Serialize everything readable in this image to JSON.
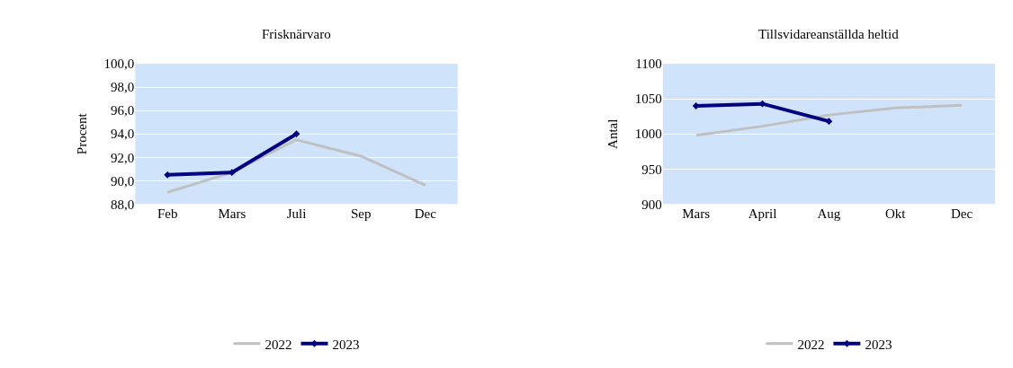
{
  "chart_data": [
    {
      "type": "line",
      "title": "Frisknärvaro",
      "ylabel": "Procent",
      "categories": [
        "Feb",
        "Mars",
        "Juli",
        "Sep",
        "Dec"
      ],
      "series": [
        {
          "name": "2022",
          "color": "#c0c0c0",
          "values": [
            89.0,
            90.7,
            93.5,
            92.1,
            89.6
          ]
        },
        {
          "name": "2023",
          "color": "#000080",
          "values": [
            90.5,
            90.7,
            94.0,
            null,
            null
          ],
          "marker": "diamond"
        }
      ],
      "ylim": [
        88,
        100
      ],
      "yticks": [
        {
          "value": 88,
          "label": "88,0"
        },
        {
          "value": 90,
          "label": "90,0"
        },
        {
          "value": 92,
          "label": "92,0"
        },
        {
          "value": 94,
          "label": "94,0"
        },
        {
          "value": 96,
          "label": "96,0"
        },
        {
          "value": 98,
          "label": "98,0"
        },
        {
          "value": 100,
          "label": "100,0"
        }
      ],
      "grid": "y",
      "legend": "bottom"
    },
    {
      "type": "line",
      "title": "Tillsvidareanställda heltid",
      "ylabel": "Antal",
      "categories": [
        "Mars",
        "April",
        "Aug",
        "Okt",
        "Dec"
      ],
      "series": [
        {
          "name": "2022",
          "color": "#c0c0c0",
          "values": [
            998,
            1011,
            1027,
            1037,
            1041
          ]
        },
        {
          "name": "2023",
          "color": "#000080",
          "values": [
            1040,
            1043,
            1018,
            null,
            null
          ],
          "marker": "diamond"
        }
      ],
      "ylim": [
        900,
        1100
      ],
      "yticks": [
        900,
        950,
        1000,
        1050,
        1100
      ],
      "grid": "y",
      "legend": "bottom"
    }
  ]
}
